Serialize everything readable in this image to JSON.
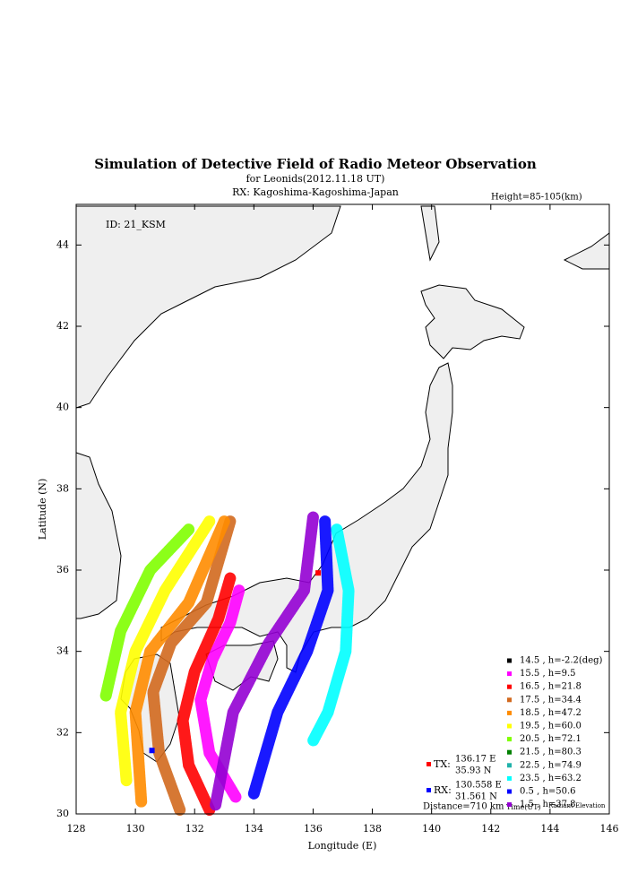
{
  "chart_data": {
    "type": "map",
    "title": "Simulation of Detective Field of Radio Meteor Observation",
    "subtitle": "for Leonids(2012.11.18 UT)",
    "receiver": "RX: Kagoshima-Kagoshima-Japan",
    "height_note": "Height=85-105(km)",
    "station_id": "ID: 21_KSM",
    "xlabel": "Longitude (E)",
    "ylabel": "Latitude (N)",
    "xlim": [
      128,
      146
    ],
    "xticks": [
      128,
      130,
      132,
      134,
      136,
      138,
      140,
      142,
      144,
      146
    ],
    "ylim": [
      30,
      45
    ],
    "yticks": [
      30,
      32,
      34,
      36,
      38,
      40,
      42,
      44
    ],
    "series": [
      {
        "name": "14.5 ,  h=-2.2(deg)",
        "color": "#000000",
        "x": [],
        "y": []
      },
      {
        "name": "15.5 ,  h=9.5",
        "color": "#ff00ff",
        "x": [
          133.5,
          133.2,
          132.6,
          132.2,
          132.5,
          133.4
        ],
        "y": [
          35.5,
          34.7,
          33.8,
          32.8,
          31.5,
          30.4
        ]
      },
      {
        "name": "16.5 ,  h=21.8",
        "color": "#ff0000",
        "x": [
          133.2,
          132.8,
          132.0,
          131.6,
          131.8,
          132.5
        ],
        "y": [
          35.8,
          34.8,
          33.5,
          32.3,
          31.2,
          30.1
        ]
      },
      {
        "name": "17.5 ,  h=34.4",
        "color": "#d2691e",
        "x": [
          133.2,
          132.4,
          131.2,
          130.6,
          130.8,
          131.5
        ],
        "y": [
          37.2,
          35.2,
          34.2,
          33.0,
          31.5,
          30.1
        ]
      },
      {
        "name": "18.5 ,  h=47.2",
        "color": "#ff8c00",
        "x": [
          133.0,
          131.8,
          130.5,
          130.0,
          130.2
        ],
        "y": [
          37.2,
          35.2,
          34.0,
          32.5,
          30.3
        ]
      },
      {
        "name": "19.5 ,  h=60.0",
        "color": "#ffff00",
        "x": [
          132.5,
          131.0,
          130.0,
          129.5,
          129.7
        ],
        "y": [
          37.2,
          35.5,
          34.0,
          32.5,
          30.8
        ]
      },
      {
        "name": "20.5 ,  h=72.1",
        "color": "#7fff00",
        "x": [
          131.8,
          130.5,
          129.5,
          129.0
        ],
        "y": [
          37.0,
          36.0,
          34.5,
          32.9
        ]
      },
      {
        "name": "21.5 ,  h=80.3",
        "color": "#008000",
        "x": [],
        "y": []
      },
      {
        "name": "22.5 ,  h=74.9",
        "color": "#20b2aa",
        "x": [],
        "y": []
      },
      {
        "name": "23.5 ,  h=63.2",
        "color": "#00ffff",
        "x": [
          136.8,
          137.2,
          137.1,
          136.5,
          136.0
        ],
        "y": [
          37.0,
          35.5,
          34.0,
          32.5,
          31.8
        ]
      },
      {
        "name": "0.5 ,  h=50.6",
        "color": "#0000ff",
        "x": [
          136.4,
          136.5,
          135.8,
          134.8,
          134.0
        ],
        "y": [
          37.2,
          35.5,
          34.0,
          32.5,
          30.5
        ]
      },
      {
        "name": "1.5 ,  h=37.8",
        "color": "#9400d3",
        "x": [
          136.0,
          135.7,
          134.5,
          133.3,
          132.7
        ],
        "y": [
          37.3,
          35.5,
          34.2,
          32.5,
          30.2
        ]
      }
    ],
    "tx": {
      "label": "TX:",
      "lon": 136.17,
      "lat": 35.93,
      "lon_label": "136.17 E",
      "lat_label": "35.93 N",
      "color": "#ff0000"
    },
    "rx": {
      "label": "RX:",
      "lon": 130.558,
      "lat": 31.561,
      "lon_label": "130.558 E",
      "lat_label": "31.561 N",
      "color": "#0000ff"
    },
    "distance": "Distance=710 km",
    "legend_time": "Time(UT)",
    "legend_elevation": "Radiant Elevation"
  }
}
